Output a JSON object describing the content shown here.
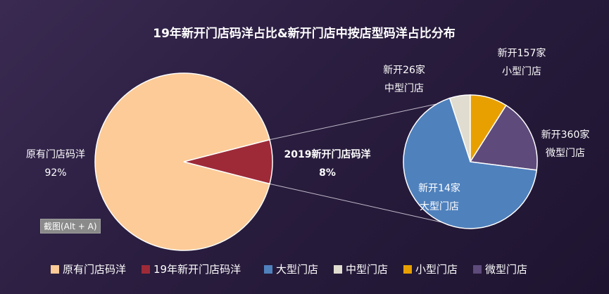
{
  "chart_data": {
    "type": "pie",
    "title": "19年新开门店码洋占比&新开门店中按店型码洋占比分布",
    "main_pie": {
      "slices": [
        {
          "name": "原有门店码洋",
          "value": 92,
          "label_name": "原有门店码洋",
          "label_value": "92%",
          "color": "#fccb97"
        },
        {
          "name": "19年新开门店码洋",
          "value": 8,
          "label_name": "2019新开门店码洋",
          "label_value": "8%",
          "color": "#9e2a38"
        }
      ]
    },
    "sub_pie": {
      "slices": [
        {
          "name": "大型门店",
          "value": 68,
          "label_line1": "新开14家",
          "label_line2": "大型门店",
          "color": "#4f81bd"
        },
        {
          "name": "中型门店",
          "value": 5,
          "label_line1": "新开26家",
          "label_line2": "中型门店",
          "color": "#e0dcd0"
        },
        {
          "name": "小型门店",
          "value": 9,
          "label_line1": "新开157家",
          "label_line2": "小型门店",
          "color": "#e8a000"
        },
        {
          "name": "微型门店",
          "value": 18,
          "label_line1": "新开360家",
          "label_line2": "微型门店",
          "color": "#5e4a7b"
        }
      ]
    },
    "legend": [
      {
        "name": "原有门店码洋",
        "color": "#fccb97"
      },
      {
        "name": "19年新开门店码洋",
        "color": "#9e2a38"
      },
      {
        "name": "大型门店",
        "color": "#4f81bd"
      },
      {
        "name": "中型门店",
        "color": "#e0dcd0"
      },
      {
        "name": "小型门店",
        "color": "#e8a000"
      },
      {
        "name": "微型门店",
        "color": "#5e4a7b"
      }
    ],
    "legend_placement": "bottom"
  },
  "tooltip": {
    "text": "截图(Alt + A)"
  }
}
